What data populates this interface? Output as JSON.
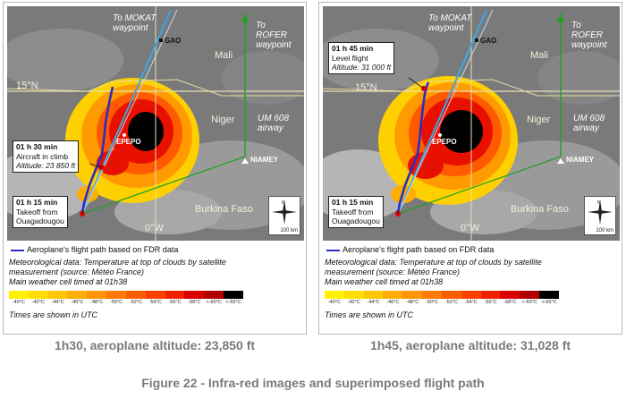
{
  "figure_title": "Figure 22 - Infra-red images and superimposed flight path",
  "map_labels": {
    "to_mokat": "To MOKAT\nwaypoint",
    "to_mokat_1": "To MOKAT",
    "to_mokat_2": "waypoint",
    "to_rofer_1": "To",
    "to_rofer_2": "ROFER",
    "to_rofer_3": "waypoint",
    "gao": "GAO",
    "mali": "Mali",
    "lat_15n": "15°N",
    "niger": "Niger",
    "um608_1": "UM 608",
    "um608_2": "airway",
    "epepo": "EPEPO",
    "niamey": "NIAMEY",
    "burkina": "Burkina Faso",
    "lon_0w": "0°W",
    "scale": "100 km"
  },
  "legend": {
    "flight_path": "Aeroplane's flight path based on FDR data",
    "meteo_1": "Meteorological data: Temperature at top of clouds by satellite",
    "meteo_2": "measurement (source: Météo France)",
    "meteo_3": "Main weather cell timed at 01h38",
    "utc": "Times are shown in UTC",
    "temps": [
      "-40°C",
      "-42°C",
      "-44°C",
      "-46°C",
      "-48°C",
      "-50°C",
      "-52°C",
      "-54°C",
      "-56°C",
      "-58°C",
      "<-60°C",
      "<-65°C"
    ],
    "colors": [
      "#fff200",
      "#ffde00",
      "#ffc600",
      "#ffad00",
      "#ff9400",
      "#ff7a00",
      "#ff5e00",
      "#ff4000",
      "#f02000",
      "#d80000",
      "#b00000",
      "#000000"
    ]
  },
  "panels": [
    {
      "caption": "1h30, aeroplane altitude: 23,850 ft",
      "callout_top": {
        "time": "01 h 30 min",
        "line2": "Aircraft in climb",
        "alt": "Altitude: 23 850 ft"
      },
      "callout_bottom": {
        "time": "01 h 15 min",
        "line2": "Takeoff from",
        "line3": "Ouagadougou"
      }
    },
    {
      "caption": "1h45, aeroplane altitude: 31,028 ft",
      "callout_top": {
        "time": "01 h 45 min",
        "line2": "Level flight",
        "alt": "Altitude: 31 000 ft"
      },
      "callout_bottom": {
        "time": "01 h 15 min",
        "line2": "Takeoff from",
        "line3": "Ouagadougou"
      }
    }
  ]
}
